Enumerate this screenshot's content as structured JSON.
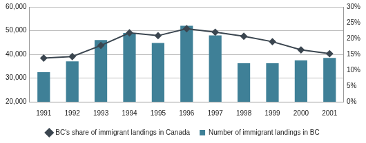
{
  "chart_data": {
    "type": "bar",
    "categories": [
      "1991",
      "1992",
      "1993",
      "1994",
      "1995",
      "1996",
      "1997",
      "1998",
      "1999",
      "2000",
      "2001"
    ],
    "series": [
      {
        "name": "Number of immigrant landings in BC",
        "type": "bar",
        "color": "#3f8097",
        "values": [
          32500,
          37000,
          46000,
          49000,
          44800,
          52000,
          48000,
          36200,
          36200,
          37500,
          38500
        ]
      },
      {
        "name": "BC's share of immigrant landings in Canada",
        "type": "line",
        "axis": "y2",
        "color": "#3b4650",
        "marker": "diamond",
        "values": [
          13.8,
          14.3,
          17.8,
          21.8,
          20.9,
          23.1,
          22.0,
          20.7,
          19.0,
          16.4,
          15.2
        ]
      }
    ],
    "ylim": [
      20000,
      60000
    ],
    "yticks": [
      {
        "value": 20000,
        "label": "20,000"
      },
      {
        "value": 30000,
        "label": "30,000"
      },
      {
        "value": 40000,
        "label": "40,000"
      },
      {
        "value": 50000,
        "label": "50,000"
      },
      {
        "value": 60000,
        "label": "60,000"
      }
    ],
    "y2lim": [
      0,
      30
    ],
    "y2ticks": [
      {
        "value": 0,
        "label": "0%"
      },
      {
        "value": 5,
        "label": "5%"
      },
      {
        "value": 10,
        "label": "10%"
      },
      {
        "value": 15,
        "label": "15%"
      },
      {
        "value": 20,
        "label": "20%"
      },
      {
        "value": 25,
        "label": "25%"
      },
      {
        "value": 30,
        "label": "30%"
      }
    ],
    "grid": true,
    "legend": "bottom"
  }
}
